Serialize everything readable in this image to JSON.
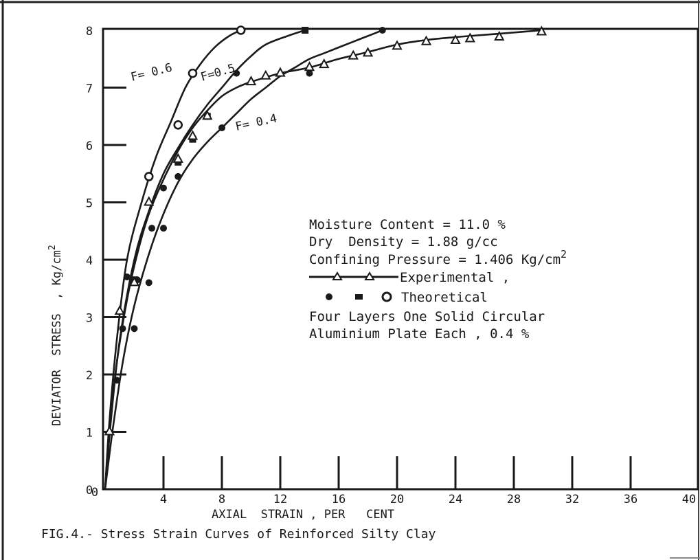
{
  "chart_data": {
    "type": "line",
    "xlabel": "AXIAL  STRAIN , PER   CENT",
    "ylabel": "DEVIATOR  STRESS  , Kg/cm",
    "ylabel_superscript": "2",
    "xlim": [
      0,
      40
    ],
    "ylim": [
      0,
      8
    ],
    "x_ticks": [
      4,
      8,
      12,
      16,
      20,
      24,
      28,
      32,
      36,
      40
    ],
    "x_tick_labels": [
      "4",
      "8",
      "12",
      "16",
      "20",
      "24",
      "28",
      "32",
      "36",
      "40"
    ],
    "y_ticks": [
      0,
      1,
      2,
      3,
      4,
      5,
      6,
      7,
      8
    ],
    "y_tick_labels": [
      "0",
      "1",
      "2",
      "3",
      "4",
      "5",
      "6",
      "7",
      "8"
    ],
    "grid": false,
    "legend_position": "center-right",
    "legend": {
      "line1": "Moisture Content = 11.0 %",
      "line2": "Dry  Density = 1.88 g/cc",
      "line3": "Confining Pressure = 1.406 Kg/cm",
      "line3_sup": "2",
      "experimental": "Experimental ,",
      "theoretical": "Theoretical",
      "line6": "Four Layers One Solid Circular",
      "line7": "Aluminium Plate Each , 0.4 %"
    },
    "caption": "FIG.4.- Stress Strain Curves of Reinforced Silty Clay",
    "series": [
      {
        "name": "F= 0.6",
        "kind": "theoretical",
        "marker": "open-circle",
        "curve": [
          [
            0,
            0
          ],
          [
            0.3,
            1.2
          ],
          [
            0.8,
            2.6
          ],
          [
            1.5,
            4.0
          ],
          [
            2.5,
            5.0
          ],
          [
            3.5,
            5.8
          ],
          [
            4.5,
            6.4
          ],
          [
            5.5,
            7.0
          ],
          [
            6.5,
            7.4
          ],
          [
            7.5,
            7.7
          ],
          [
            8.5,
            7.9
          ],
          [
            9.3,
            8.0
          ]
        ],
        "points": [
          [
            3.0,
            5.45
          ],
          [
            5.0,
            6.35
          ],
          [
            6.0,
            7.25
          ],
          [
            9.3,
            8.0
          ]
        ]
      },
      {
        "name": "F=0.5",
        "kind": "theoretical",
        "marker": "filled-square",
        "curve": [
          [
            0,
            0
          ],
          [
            0.4,
            1.2
          ],
          [
            1.0,
            2.6
          ],
          [
            2.0,
            4.0
          ],
          [
            3.0,
            4.85
          ],
          [
            4.0,
            5.5
          ],
          [
            5.0,
            5.95
          ],
          [
            6.0,
            6.35
          ],
          [
            7.0,
            6.7
          ],
          [
            8.0,
            7.0
          ],
          [
            9.0,
            7.3
          ],
          [
            10.0,
            7.55
          ],
          [
            11.0,
            7.75
          ],
          [
            12.5,
            7.9
          ],
          [
            13.7,
            8.0
          ]
        ],
        "points": [
          [
            2.0,
            3.65
          ],
          [
            5.0,
            5.7
          ],
          [
            6.0,
            6.1
          ],
          [
            7.0,
            6.5
          ],
          [
            13.7,
            8.0
          ]
        ]
      },
      {
        "name": "F= 0.4",
        "kind": "theoretical",
        "marker": "filled-circle",
        "curve": [
          [
            0,
            0
          ],
          [
            0.5,
            1.0
          ],
          [
            1.2,
            2.2
          ],
          [
            2.0,
            3.2
          ],
          [
            3.0,
            4.1
          ],
          [
            4.0,
            4.8
          ],
          [
            5.0,
            5.35
          ],
          [
            6.0,
            5.75
          ],
          [
            7.0,
            6.05
          ],
          [
            8.0,
            6.3
          ],
          [
            9.0,
            6.55
          ],
          [
            10.0,
            6.8
          ],
          [
            11.0,
            7.0
          ],
          [
            12.0,
            7.2
          ],
          [
            13.0,
            7.35
          ],
          [
            14.0,
            7.5
          ],
          [
            15.0,
            7.6
          ],
          [
            16.0,
            7.7
          ],
          [
            17.0,
            7.8
          ],
          [
            18.0,
            7.9
          ],
          [
            19.0,
            8.0
          ]
        ],
        "points": [
          [
            0.8,
            1.9
          ],
          [
            1.2,
            2.8
          ],
          [
            2.0,
            2.8
          ],
          [
            1.5,
            3.7
          ],
          [
            2.2,
            3.65
          ],
          [
            3.0,
            3.6
          ],
          [
            3.2,
            4.55
          ],
          [
            4.0,
            4.55
          ],
          [
            4.0,
            5.25
          ],
          [
            5.0,
            5.45
          ],
          [
            8.0,
            6.3
          ],
          [
            9.0,
            7.25
          ],
          [
            14.0,
            7.25
          ],
          [
            19.0,
            8.0
          ]
        ]
      },
      {
        "name": "Experimental",
        "kind": "experimental",
        "marker": "open-triangle",
        "curve": [
          [
            0,
            0
          ],
          [
            0.3,
            1.0
          ],
          [
            0.8,
            2.2
          ],
          [
            1.5,
            3.3
          ],
          [
            2.2,
            4.1
          ],
          [
            3.0,
            4.8
          ],
          [
            4.0,
            5.4
          ],
          [
            5.0,
            5.9
          ],
          [
            6.0,
            6.3
          ],
          [
            7.0,
            6.6
          ],
          [
            8.0,
            6.85
          ],
          [
            9.0,
            7.0
          ],
          [
            10.0,
            7.1
          ],
          [
            12.0,
            7.25
          ],
          [
            14.0,
            7.35
          ],
          [
            16.0,
            7.5
          ],
          [
            18.0,
            7.62
          ],
          [
            20.0,
            7.75
          ],
          [
            22.0,
            7.83
          ],
          [
            24.0,
            7.88
          ],
          [
            26.0,
            7.92
          ],
          [
            28.0,
            7.96
          ],
          [
            29.9,
            8.0
          ]
        ],
        "points": [
          [
            0.3,
            1.0
          ],
          [
            1.0,
            3.1
          ],
          [
            2.0,
            3.6
          ],
          [
            3.0,
            5.0
          ],
          [
            5.0,
            5.75
          ],
          [
            6.0,
            6.15
          ],
          [
            7.0,
            6.5
          ],
          [
            10.0,
            7.1
          ],
          [
            11.0,
            7.2
          ],
          [
            12.0,
            7.25
          ],
          [
            14.0,
            7.35
          ],
          [
            15.0,
            7.4
          ],
          [
            17.0,
            7.55
          ],
          [
            18.0,
            7.6
          ],
          [
            20.0,
            7.72
          ],
          [
            22.0,
            7.8
          ],
          [
            24.0,
            7.82
          ],
          [
            25.0,
            7.85
          ],
          [
            27.0,
            7.88
          ],
          [
            29.9,
            7.97
          ]
        ]
      }
    ]
  }
}
